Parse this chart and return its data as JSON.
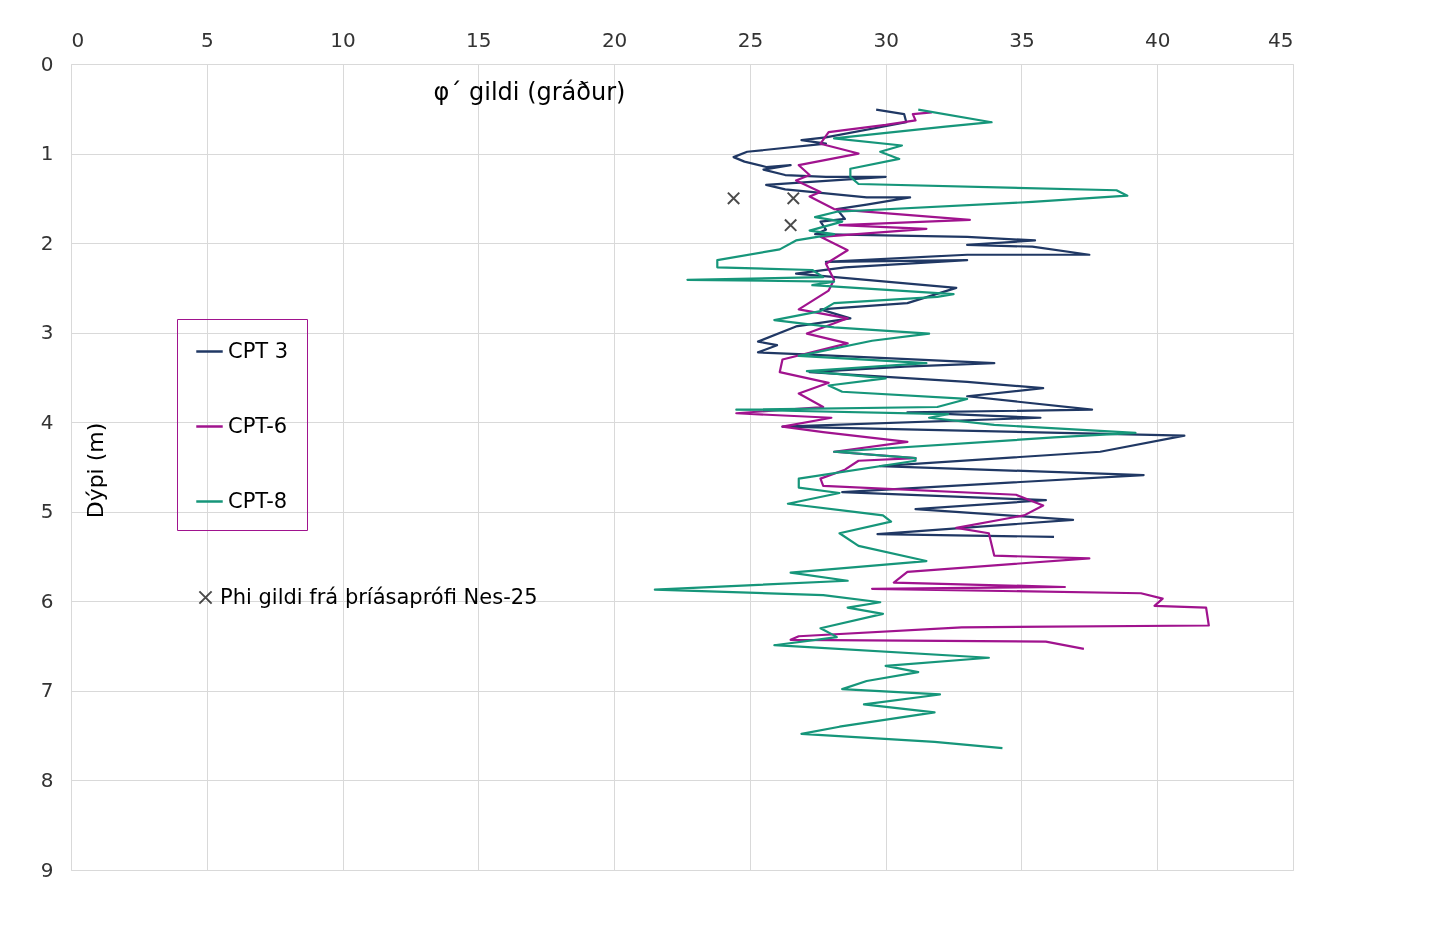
{
  "chart_data": {
    "type": "line",
    "xlabel": "φ´ gildi (gráður)",
    "ylabel": "Dýpi (m)",
    "xlim": [
      0,
      45
    ],
    "xticks": [
      0,
      5,
      10,
      15,
      20,
      25,
      30,
      35,
      40,
      45
    ],
    "ylim": [
      9,
      0
    ],
    "yticks": [
      0,
      1,
      2,
      3,
      4,
      5,
      6,
      7,
      8,
      9
    ],
    "grid": true,
    "legend": "left",
    "line_style": "solid",
    "series": [
      {
        "name": "CPT 3",
        "color": "#203864",
        "x": [
          29.65,
          30.68,
          30.76,
          27.8,
          26.9,
          27.8,
          24.9,
          24.4,
          24.8,
          25.6,
          26.5,
          25.5,
          26.3,
          27.8,
          30.0,
          25.6,
          26.3,
          29.3,
          30.9,
          29.3,
          28.2,
          28.5,
          27.6,
          27.8,
          27.4,
          33.0,
          35.5,
          33.0,
          35.4,
          37.5,
          33.0,
          27.8,
          33.0,
          28.5,
          26.7,
          32.6,
          30.8,
          27.6,
          28.7,
          26.7,
          25.3,
          26.0,
          25.3,
          26.8,
          34.0,
          30.7,
          27.2,
          33.0,
          35.8,
          33.0,
          37.6,
          30.8,
          35.7,
          26.2,
          41.0,
          37.9,
          29.8,
          39.5,
          28.4,
          35.9,
          31.1,
          36.9,
          29.7,
          36.2
        ],
        "values": [
          0.51,
          0.56,
          0.65,
          0.82,
          0.85,
          0.89,
          0.98,
          1.04,
          1.09,
          1.15,
          1.13,
          1.18,
          1.24,
          1.26,
          1.26,
          1.35,
          1.4,
          1.49,
          1.49,
          1.57,
          1.62,
          1.73,
          1.76,
          1.85,
          1.9,
          1.93,
          1.97,
          2.02,
          2.04,
          2.13,
          2.13,
          2.21,
          2.19,
          2.27,
          2.34,
          2.5,
          2.67,
          2.74,
          2.84,
          2.93,
          3.1,
          3.14,
          3.22,
          3.24,
          3.34,
          3.38,
          3.44,
          3.55,
          3.62,
          3.71,
          3.86,
          3.89,
          3.95,
          4.05,
          4.15,
          4.33,
          4.49,
          4.59,
          4.78,
          4.87,
          4.97,
          5.09,
          5.25,
          5.28
        ]
      },
      {
        "name": "CPT-6",
        "color": "#a0138e",
        "x": [
          31.7,
          31.0,
          31.1,
          30.0,
          27.9,
          27.6,
          29.0,
          26.8,
          27.2,
          26.7,
          27.6,
          27.2,
          28.1,
          33.1,
          28.3,
          31.5,
          27.6,
          28.6,
          27.8,
          28.1,
          27.9,
          26.8,
          28.6,
          27.1,
          28.6,
          26.2,
          26.1,
          27.9,
          26.8,
          27.7,
          24.5,
          28.0,
          26.2,
          27.7,
          30.8,
          28.1,
          31.1,
          29.0,
          28.5,
          27.6,
          27.7,
          34.8,
          35.8,
          35.1,
          32.6,
          33.8,
          34.0,
          37.5,
          30.8,
          30.3,
          36.6,
          29.5,
          39.4,
          40.2,
          39.9,
          41.8,
          41.9,
          32.8,
          26.8,
          26.5,
          35.9,
          37.3
        ],
        "values": [
          0.54,
          0.56,
          0.63,
          0.68,
          0.76,
          0.89,
          1.0,
          1.13,
          1.24,
          1.3,
          1.43,
          1.48,
          1.62,
          1.74,
          1.8,
          1.84,
          1.93,
          2.08,
          2.23,
          2.41,
          2.53,
          2.74,
          2.84,
          3.01,
          3.12,
          3.3,
          3.44,
          3.56,
          3.68,
          3.83,
          3.9,
          3.95,
          4.05,
          4.11,
          4.22,
          4.33,
          4.4,
          4.43,
          4.53,
          4.63,
          4.71,
          4.81,
          4.93,
          5.04,
          5.18,
          5.24,
          5.49,
          5.52,
          5.67,
          5.79,
          5.84,
          5.86,
          5.91,
          5.97,
          6.05,
          6.07,
          6.27,
          6.29,
          6.39,
          6.43,
          6.45,
          6.53
        ]
      },
      {
        "name": "CPT-8",
        "color": "#16967a",
        "x": [
          31.2,
          33.9,
          32.2,
          28.1,
          30.6,
          29.8,
          30.5,
          28.7,
          28.7,
          29.0,
          38.5,
          38.9,
          35.4,
          28.2,
          27.4,
          28.4,
          27.2,
          28.1,
          26.7,
          26.1,
          23.8,
          23.8,
          27.3,
          27.7,
          22.7,
          28.1,
          27.3,
          32.5,
          31.9,
          28.1,
          27.6,
          25.9,
          28.1,
          31.6,
          29.5,
          26.8,
          31.5,
          27.1,
          30.0,
          27.9,
          28.4,
          33.0,
          31.9,
          24.5,
          32.3,
          31.6,
          34.0,
          39.2,
          36.2,
          28.1,
          31.1,
          31.1,
          26.8,
          26.8,
          28.3,
          26.4,
          29.9,
          30.2,
          28.3,
          29.0,
          31.5,
          26.5,
          28.6,
          21.5,
          27.7,
          29.8,
          28.6,
          29.9,
          27.6,
          28.1,
          28.2,
          25.9,
          33.8,
          30.0,
          31.2,
          29.3,
          28.4,
          32.0,
          29.2,
          31.8,
          28.3,
          26.9,
          31.8,
          34.3
        ],
        "values": [
          0.51,
          0.65,
          0.7,
          0.83,
          0.91,
          0.98,
          1.06,
          1.17,
          1.26,
          1.34,
          1.41,
          1.47,
          1.54,
          1.65,
          1.71,
          1.76,
          1.86,
          1.9,
          1.97,
          2.07,
          2.19,
          2.27,
          2.3,
          2.38,
          2.41,
          2.43,
          2.47,
          2.57,
          2.6,
          2.67,
          2.76,
          2.86,
          2.94,
          3.01,
          3.09,
          3.26,
          3.34,
          3.43,
          3.51,
          3.59,
          3.66,
          3.74,
          3.83,
          3.86,
          3.91,
          3.95,
          4.03,
          4.12,
          4.17,
          4.33,
          4.4,
          4.43,
          4.63,
          4.73,
          4.79,
          4.91,
          5.04,
          5.11,
          5.24,
          5.38,
          5.55,
          5.68,
          5.77,
          5.87,
          5.93,
          6.01,
          6.07,
          6.14,
          6.3,
          6.38,
          6.4,
          6.49,
          6.63,
          6.72,
          6.79,
          6.89,
          6.98,
          7.04,
          7.15,
          7.24,
          7.4,
          7.48,
          7.57,
          7.64
        ]
      },
      {
        "name": "Phi gildi frá þríásaprófi Nes-25",
        "type": "scatter",
        "marker": "cross",
        "color": "#000000",
        "x": [
          24.4,
          26.6,
          26.5
        ],
        "values": [
          1.5,
          1.5,
          1.8
        ]
      }
    ]
  }
}
